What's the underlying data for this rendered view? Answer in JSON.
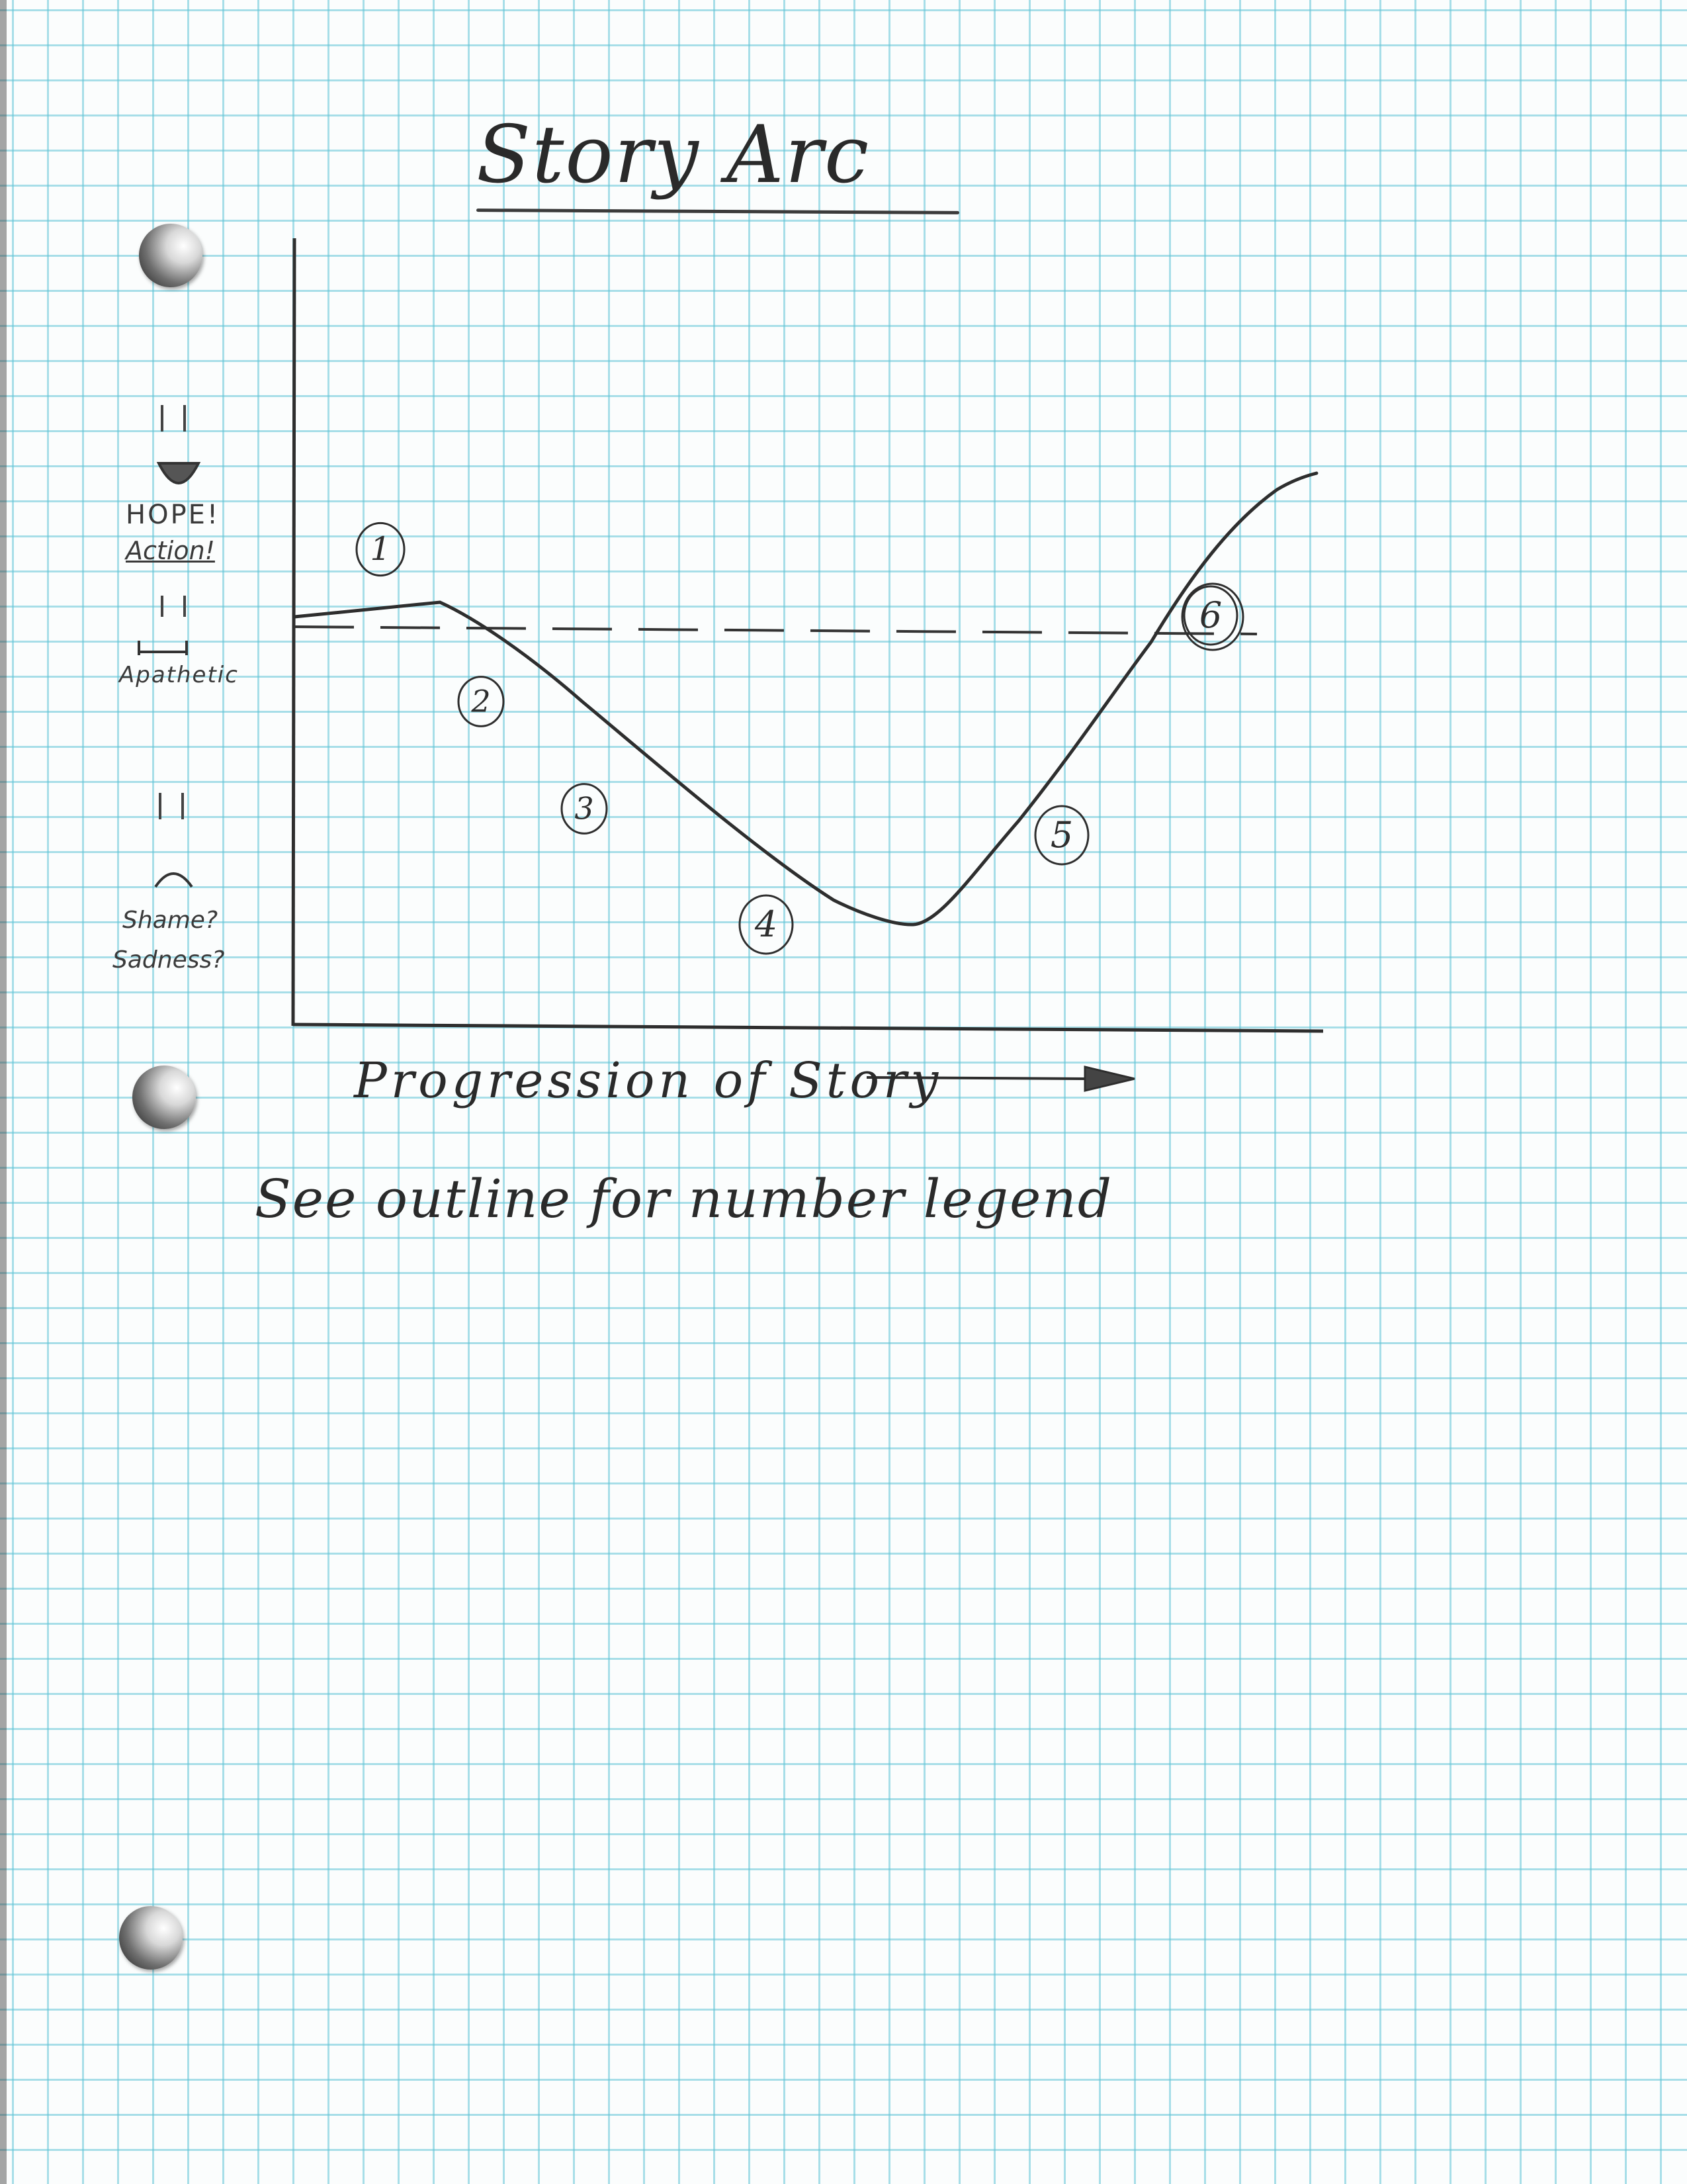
{
  "title": "Story Arc",
  "y_axis_labels": {
    "top_line1": "HOPE!",
    "top_line2": "Action!",
    "middle": "Apathetic",
    "bottom_line1": "Shame?",
    "bottom_line2": "Sadness?"
  },
  "x_axis_label": "Progression of Story",
  "footnote": "See outline for number legend",
  "markers": [
    "1",
    "2",
    "3",
    "4",
    "5",
    "6"
  ],
  "colors": {
    "ink": "#2e2e2e",
    "grid": "#62c4d6",
    "paper": "#fbfdfd"
  }
}
